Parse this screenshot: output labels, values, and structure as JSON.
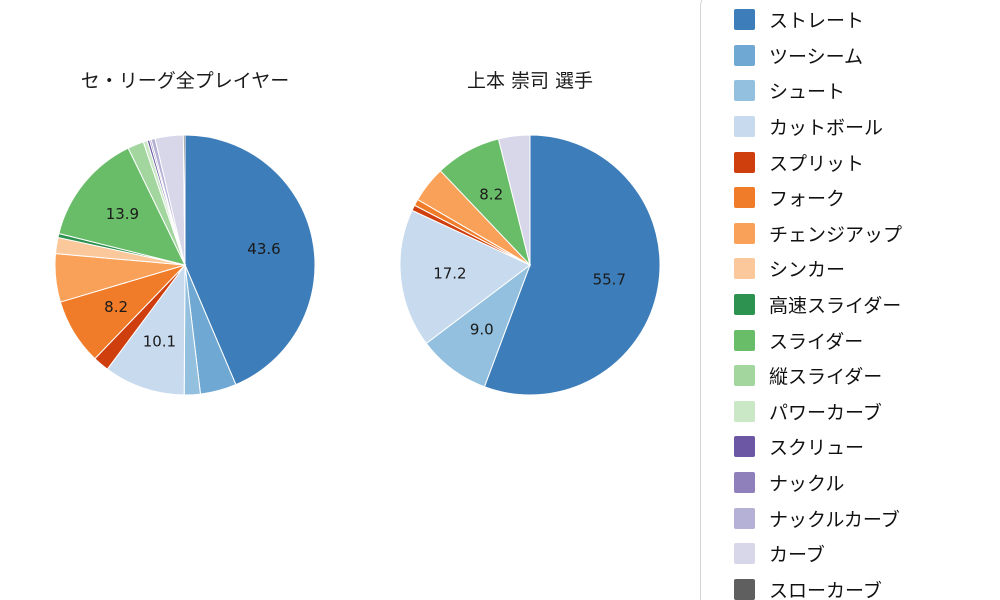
{
  "page": {
    "background": "#ffffff"
  },
  "legend": {
    "position": "right",
    "items": [
      {
        "key": "straight",
        "label": "ストレート",
        "color": "#3d7db9"
      },
      {
        "key": "two-seam",
        "label": "ツーシーム",
        "color": "#6fa8d2"
      },
      {
        "key": "shuuto",
        "label": "シュート",
        "color": "#92c0de"
      },
      {
        "key": "cut-ball",
        "label": "カットボール",
        "color": "#c8daee"
      },
      {
        "key": "split",
        "label": "スプリット",
        "color": "#cf3f0e"
      },
      {
        "key": "fork",
        "label": "フォーク",
        "color": "#f07b28"
      },
      {
        "key": "changeup",
        "label": "チェンジアップ",
        "color": "#f9a158"
      },
      {
        "key": "sinker",
        "label": "シンカー",
        "color": "#fbc89c"
      },
      {
        "key": "fast-slider",
        "label": "高速スライダー",
        "color": "#2d9150"
      },
      {
        "key": "slider",
        "label": "スライダー",
        "color": "#6abd68"
      },
      {
        "key": "vertical-slider",
        "label": "縦スライダー",
        "color": "#a3d69f"
      },
      {
        "key": "power-curve",
        "label": "パワーカーブ",
        "color": "#cbe8c6"
      },
      {
        "key": "screw",
        "label": "スクリュー",
        "color": "#6c57a5"
      },
      {
        "key": "knuckle",
        "label": "ナックル",
        "color": "#8f80bb"
      },
      {
        "key": "knuckle-curve",
        "label": "ナックルカーブ",
        "color": "#b5b0d6"
      },
      {
        "key": "curve",
        "label": "カーブ",
        "color": "#d8d7ea"
      },
      {
        "key": "slow-curve",
        "label": "スローカーブ",
        "color": "#5f5f5f"
      }
    ]
  },
  "chart_data": [
    {
      "type": "pie",
      "title": "セ・リーグ全プレイヤー",
      "categories": [
        "ストレート",
        "ツーシーム",
        "シュート",
        "カットボール",
        "スプリット",
        "フォーク",
        "チェンジアップ",
        "シンカー",
        "高速スライダー",
        "スライダー",
        "縦スライダー",
        "パワーカーブ",
        "スクリュー",
        "ナックル",
        "ナックルカーブ",
        "カーブ",
        "スローカーブ"
      ],
      "values": [
        43.6,
        4.5,
        2.0,
        10.1,
        2.0,
        8.2,
        6.0,
        2.0,
        0.5,
        13.9,
        2.0,
        0.5,
        0.3,
        0.2,
        0.5,
        3.5,
        0.2
      ],
      "labeled_values": {
        "ストレート": 43.6,
        "カットボール": 10.1,
        "フォーク": 8.2,
        "スライダー": 13.9
      },
      "label_min": 8,
      "start_angle_deg": 0,
      "direction": "clockwise",
      "unit": "percent",
      "note": "values without an on-chart label are estimated from slice angles"
    },
    {
      "type": "pie",
      "title": "上本 崇司 選手",
      "categories": [
        "ストレート",
        "ツーシーム",
        "シュート",
        "カットボール",
        "スプリット",
        "フォーク",
        "チェンジアップ",
        "シンカー",
        "高速スライダー",
        "スライダー",
        "縦スライダー",
        "パワーカーブ",
        "スクリュー",
        "ナックル",
        "ナックルカーブ",
        "カーブ",
        "スローカーブ"
      ],
      "values": [
        55.7,
        0,
        9.0,
        17.2,
        0.7,
        0.8,
        4.5,
        0,
        0,
        8.2,
        0,
        0,
        0,
        0,
        0,
        3.9,
        0
      ],
      "labeled_values": {
        "ストレート": 55.7,
        "シュート": 9.0,
        "カットボール": 17.2,
        "スライダー": 8.2
      },
      "label_min": 8,
      "start_angle_deg": 0,
      "direction": "clockwise",
      "unit": "percent",
      "note": "values without an on-chart label are estimated from slice angles"
    }
  ]
}
